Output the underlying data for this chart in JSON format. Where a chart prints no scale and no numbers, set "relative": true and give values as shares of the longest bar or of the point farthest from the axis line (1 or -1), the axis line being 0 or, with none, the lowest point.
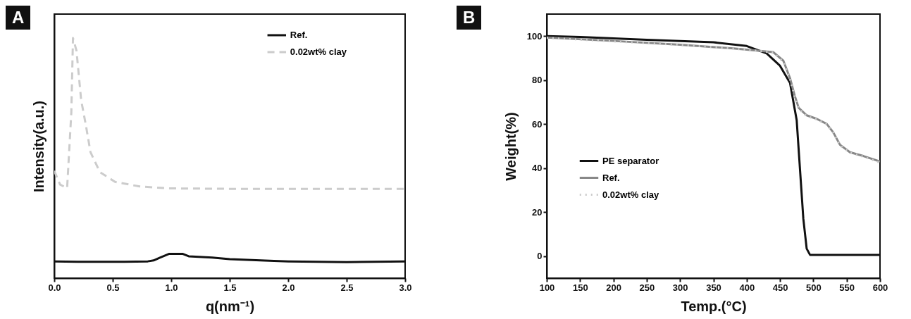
{
  "chart_data": [
    {
      "type": "line",
      "title": "A",
      "xlabel": "q(nm⁻¹)",
      "ylabel": "Intensity(a.u.)",
      "relative": true,
      "tick_labels": "x",
      "grid": false,
      "legend": "top right",
      "xlim": [
        0,
        3
      ],
      "xticks": [
        {
          "value": 0,
          "label": "0.0"
        },
        {
          "value": 0.5,
          "label": "0.5"
        },
        {
          "value": 1,
          "label": "1.0"
        },
        {
          "value": 1.5,
          "label": "1.5"
        },
        {
          "value": 2,
          "label": "2.0"
        },
        {
          "value": 2.5,
          "label": "2.5"
        },
        {
          "value": 3,
          "label": "3.0"
        }
      ],
      "series": [
        {
          "name": "Ref.",
          "color": "#111111",
          "line_style": "solid",
          "x": [
            0,
            0.2,
            0.4,
            0.6,
            0.8,
            0.85,
            0.9,
            0.98,
            1.1,
            1.15,
            1.35,
            1.5,
            1.8,
            2.0,
            2.5,
            3.0
          ],
          "values": [
            0.07,
            0.068,
            0.068,
            0.068,
            0.07,
            0.074,
            0.085,
            0.101,
            0.101,
            0.091,
            0.086,
            0.079,
            0.073,
            0.07,
            0.067,
            0.07
          ]
        },
        {
          "name": "0.02wt% clay",
          "color": "#cccccc",
          "line_style": "dashed",
          "x": [
            0,
            0.05,
            0.11,
            0.146,
            0.16,
            0.19,
            0.23,
            0.27,
            0.31,
            0.39,
            0.52,
            0.73,
            0.98,
            1.5,
            2.0,
            2.5,
            3.0
          ],
          "values": [
            0.447,
            0.39,
            0.375,
            0.69,
            1,
            0.948,
            0.742,
            0.638,
            0.525,
            0.442,
            0.401,
            0.382,
            0.374,
            0.372,
            0.372,
            0.372,
            0.372
          ]
        }
      ]
    },
    {
      "type": "line",
      "title": "B",
      "xlabel": "Temp.(°C)",
      "ylabel": "Weight(%)",
      "grid": false,
      "legend": "left",
      "xlim": [
        100,
        600
      ],
      "xticks": [
        100,
        150,
        200,
        250,
        300,
        350,
        400,
        450,
        500,
        550,
        600
      ],
      "ylim": [
        -10,
        110
      ],
      "yticks": [
        0,
        20,
        40,
        60,
        80,
        100
      ],
      "series": [
        {
          "name": "PE separator",
          "color": "#111111",
          "line_style": "solid",
          "x": [
            100,
            150,
            250,
            350,
            400,
            430,
            450,
            465,
            475,
            480,
            485,
            490,
            495,
            600
          ],
          "values": [
            100,
            99.6,
            98.3,
            97.2,
            95.5,
            92.1,
            86.5,
            78.7,
            61.8,
            39.3,
            16.9,
            3.4,
            0.6,
            0.6
          ]
        },
        {
          "name": "Ref.",
          "color": "#888888",
          "line_style": "solid",
          "x": [
            100,
            200,
            300,
            380,
            420,
            440,
            455,
            465,
            472,
            478,
            490,
            505,
            520,
            530,
            540,
            555,
            575,
            600
          ],
          "values": [
            99.4,
            97.8,
            96.1,
            94.4,
            93.3,
            92.7,
            88.8,
            80.9,
            73,
            67.4,
            64,
            62.4,
            60.1,
            56.2,
            50.6,
            47.2,
            45.5,
            43
          ]
        },
        {
          "name": "0.02wt% clay",
          "color": "#cccccc",
          "line_style": "dotted",
          "x": [
            100,
            200,
            300,
            380,
            420,
            440,
            455,
            465,
            472,
            478,
            490,
            505,
            520,
            530,
            540,
            555,
            575,
            600
          ],
          "values": [
            99.2,
            97.6,
            96,
            94.3,
            93.2,
            92.5,
            88.3,
            80.5,
            72.6,
            67,
            63.6,
            62.2,
            59.9,
            56,
            50.3,
            47,
            45.2,
            42.5
          ]
        }
      ]
    }
  ]
}
